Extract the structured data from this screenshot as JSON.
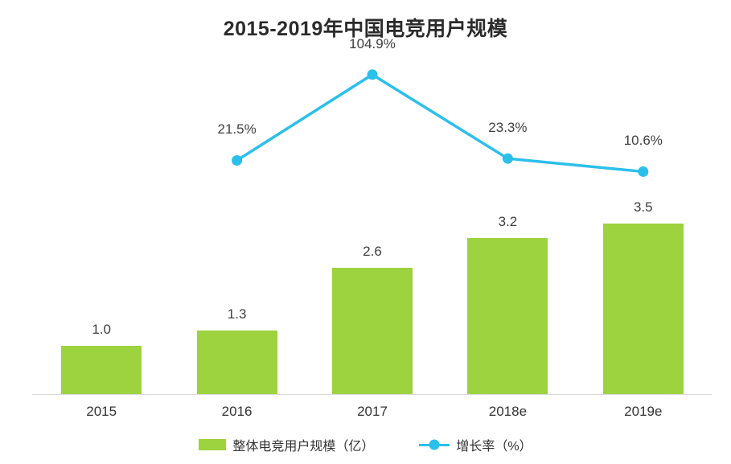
{
  "title": "2015-2019年中国电竞用户规模",
  "legend": {
    "bars": "整体电竞用户规模（亿）",
    "line": "增长率（%）"
  },
  "colors": {
    "bar": "#9DD33E",
    "line": "#2BBFEC",
    "text": "#404040",
    "axis": "#D8D8D8"
  },
  "chart_data": {
    "type": "bar",
    "subtype": "bar+line combo",
    "title": "2015-2019年中国电竞用户规模",
    "categories": [
      "2015",
      "2016",
      "2017",
      "2018e",
      "2019e"
    ],
    "series": [
      {
        "name": "整体电竞用户规模（亿）",
        "type": "bar",
        "values": [
          1.0,
          1.3,
          2.6,
          3.2,
          3.5
        ],
        "labels": [
          "1.0",
          "1.3",
          "2.6",
          "3.2",
          "3.5"
        ],
        "color": "#9DD33E",
        "axis": {
          "min": 0,
          "max": 4.0,
          "visible": false
        }
      },
      {
        "name": "增长率（%）",
        "type": "line",
        "values": [
          null,
          21.5,
          104.9,
          23.3,
          10.6
        ],
        "labels": [
          "",
          "21.5%",
          "104.9%",
          "23.3%",
          "10.6%"
        ],
        "color": "#2BBFEC",
        "axis": {
          "min": 0,
          "max": 160,
          "visible": false
        }
      }
    ],
    "xlabel": "",
    "ylabel": "",
    "grid": false,
    "legend_position": "bottom",
    "data_labels": true
  }
}
